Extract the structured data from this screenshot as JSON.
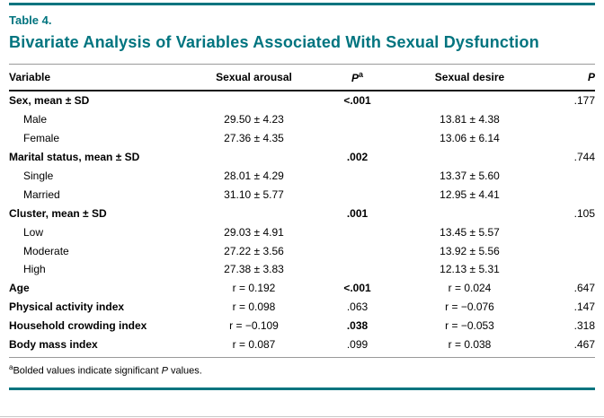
{
  "colors": {
    "accent": "#00747f",
    "header_rule": "#141414",
    "thin_rule": "#9a9a9a"
  },
  "header": {
    "table_label": "Table 4.",
    "title": "Bivariate Analysis of Variables Associated With Sexual Dysfunction"
  },
  "table": {
    "col_variable": "Variable",
    "col_arousal": "Sexual arousal",
    "col_p1": "P",
    "col_p1_sup": "a",
    "col_desire": "Sexual desire",
    "col_p2": "P",
    "rows": [
      {
        "label": "Sex, mean ± SD",
        "bold": true,
        "indent": false,
        "arousal": "",
        "p1": "<.001",
        "p1_bold": true,
        "desire": "",
        "p2": ".177"
      },
      {
        "label": "Male",
        "bold": false,
        "indent": true,
        "arousal": "29.50 ± 4.23",
        "p1": "",
        "p1_bold": false,
        "desire": "13.81 ± 4.38",
        "p2": ""
      },
      {
        "label": "Female",
        "bold": false,
        "indent": true,
        "arousal": "27.36 ± 4.35",
        "p1": "",
        "p1_bold": false,
        "desire": "13.06 ± 6.14",
        "p2": ""
      },
      {
        "label": "Marital status, mean ± SD",
        "bold": true,
        "indent": false,
        "arousal": "",
        "p1": ".002",
        "p1_bold": true,
        "desire": "",
        "p2": ".744"
      },
      {
        "label": "Single",
        "bold": false,
        "indent": true,
        "arousal": "28.01 ± 4.29",
        "p1": "",
        "p1_bold": false,
        "desire": "13.37 ± 5.60",
        "p2": ""
      },
      {
        "label": "Married",
        "bold": false,
        "indent": true,
        "arousal": "31.10 ± 5.77",
        "p1": "",
        "p1_bold": false,
        "desire": "12.95 ± 4.41",
        "p2": ""
      },
      {
        "label": "Cluster, mean ± SD",
        "bold": true,
        "indent": false,
        "arousal": "",
        "p1": ".001",
        "p1_bold": true,
        "desire": "",
        "p2": ".105"
      },
      {
        "label": "Low",
        "bold": false,
        "indent": true,
        "arousal": "29.03 ± 4.91",
        "p1": "",
        "p1_bold": false,
        "desire": "13.45 ± 5.57",
        "p2": ""
      },
      {
        "label": "Moderate",
        "bold": false,
        "indent": true,
        "arousal": "27.22 ± 3.56",
        "p1": "",
        "p1_bold": false,
        "desire": "13.92 ± 5.56",
        "p2": ""
      },
      {
        "label": "High",
        "bold": false,
        "indent": true,
        "arousal": "27.38 ± 3.83",
        "p1": "",
        "p1_bold": false,
        "desire": "12.13 ± 5.31",
        "p2": ""
      },
      {
        "label": "Age",
        "bold": true,
        "indent": false,
        "arousal": "r = 0.192",
        "p1": "<.001",
        "p1_bold": true,
        "desire": "r = 0.024",
        "p2": ".647"
      },
      {
        "label": "Physical activity index",
        "bold": true,
        "indent": false,
        "arousal": "r = 0.098",
        "p1": ".063",
        "p1_bold": false,
        "desire": "r = −0.076",
        "p2": ".147"
      },
      {
        "label": "Household crowding index",
        "bold": true,
        "indent": false,
        "arousal": "r = −0.109",
        "p1": ".038",
        "p1_bold": true,
        "desire": "r = −0.053",
        "p2": ".318"
      },
      {
        "label": "Body mass index",
        "bold": true,
        "indent": false,
        "arousal": "r = 0.087",
        "p1": ".099",
        "p1_bold": false,
        "desire": "r = 0.038",
        "p2": ".467"
      }
    ]
  },
  "footnote": {
    "marker": "a",
    "prefix": "Bolded values indicate significant ",
    "p_word": "P",
    "suffix": " values."
  }
}
